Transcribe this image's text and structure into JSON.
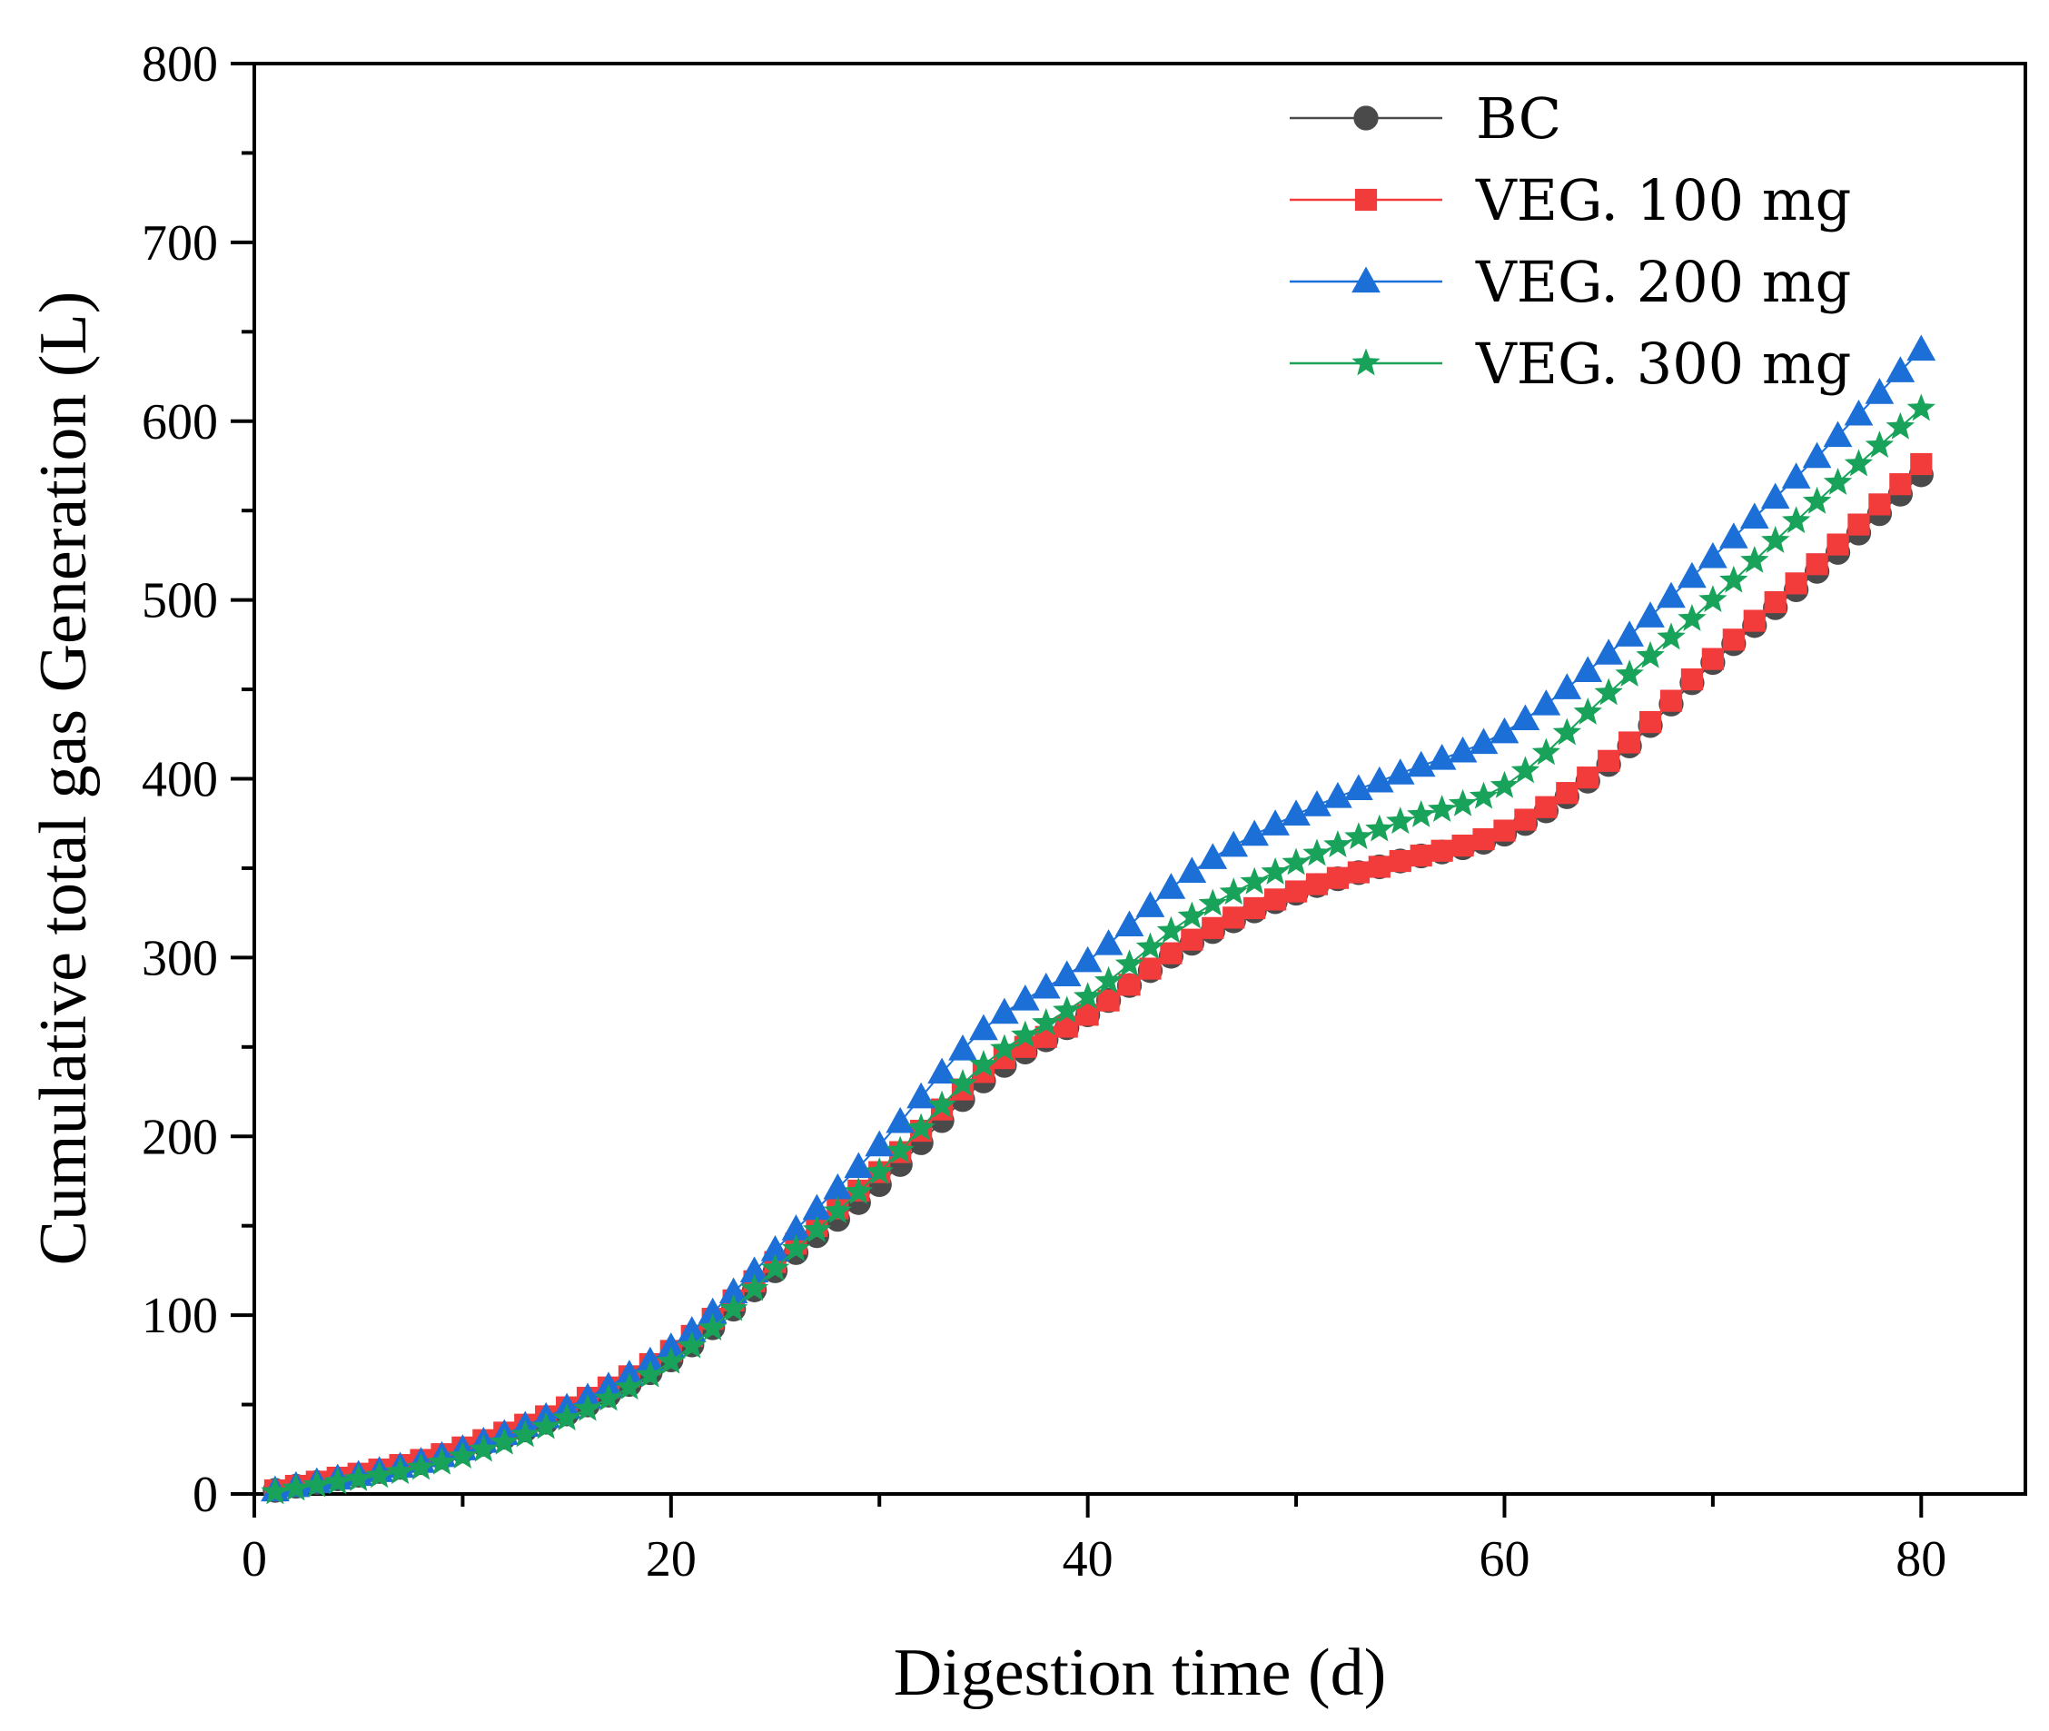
{
  "chart_data": {
    "type": "line",
    "title": "",
    "xlabel": "Digestion time (d)",
    "ylabel": "Cumulative total gas Generation (L)",
    "xlim": [
      0,
      85
    ],
    "ylim": [
      0,
      800
    ],
    "xticks": [
      0,
      20,
      40,
      60,
      80
    ],
    "yticks": [
      0,
      100,
      200,
      300,
      400,
      500,
      600,
      700,
      800
    ],
    "grid": false,
    "legend_position": "top-right",
    "anchors_x": [
      1,
      10,
      20,
      26,
      30,
      35,
      40,
      45,
      50,
      55,
      60,
      65,
      70,
      75,
      80
    ],
    "series": [
      {
        "name": "BC",
        "color": "#4a4a4a",
        "marker": "circle",
        "anchors_y": [
          2,
          24,
          75,
          135,
          173,
          231,
          268,
          308,
          336,
          354,
          369,
          408,
          465,
          516,
          570
        ]
      },
      {
        "name": "VEG. 100 mg",
        "color": "#f23c3c",
        "marker": "square",
        "anchors_y": [
          2,
          26,
          80,
          140,
          180,
          236,
          268,
          310,
          337,
          354,
          371,
          410,
          467,
          520,
          576
        ]
      },
      {
        "name": "VEG. 200 mg",
        "color": "#1c6fd6",
        "marker": "triangle",
        "anchors_y": [
          2,
          25,
          82,
          148,
          195,
          260,
          298,
          348,
          380,
          403,
          426,
          470,
          524,
          580,
          640
        ]
      },
      {
        "name": "VEG. 300 mg",
        "color": "#19a35a",
        "marker": "star",
        "anchors_y": [
          1,
          21,
          74,
          137,
          180,
          240,
          278,
          323,
          353,
          376,
          396,
          448,
          500,
          555,
          607
        ]
      }
    ]
  }
}
